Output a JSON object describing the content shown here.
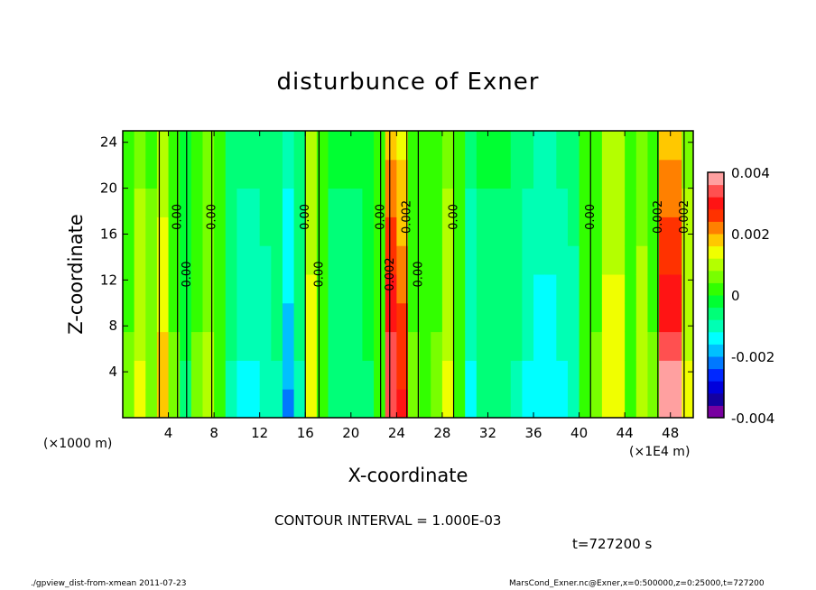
{
  "title": "disturbunce of Exner",
  "ylabel": "Z-coordinate",
  "xlabel": "X-coordinate",
  "x_unit_left": "(×1000 m)",
  "x_unit_right": "(×1E4 m)",
  "contour_interval": "CONTOUR INTERVAL = 1.000E-03",
  "time": "t=727200 s",
  "footer_left": "./gpview_dist-from-xmean   2011-07-23",
  "footer_right": "MarsCond_Exner.nc@Exner,x=0:500000,z=0:25000,t=727200",
  "chart_data": {
    "type": "heatmap",
    "title": "disturbunce of Exner",
    "xlabel": "X-coordinate",
    "ylabel": "Z-coordinate",
    "xlim": [
      0,
      50
    ],
    "ylim": [
      0,
      25
    ],
    "xticks": [
      4,
      8,
      12,
      16,
      20,
      24,
      28,
      32,
      36,
      40,
      44,
      48
    ],
    "yticks": [
      4,
      8,
      12,
      16,
      20,
      24
    ],
    "x_profile_x": [
      0.5,
      1.5,
      2.5,
      3.5,
      4.5,
      5.5,
      6.5,
      7.5,
      8.5,
      9.5,
      10.5,
      11.5,
      12.5,
      13.5,
      14.5,
      15.5,
      16.5,
      17.5,
      18.5,
      19.5,
      20.5,
      21.5,
      22.5,
      23.5,
      24.5,
      25.5,
      26.5,
      27.5,
      28.5,
      29.5,
      30.5,
      31.5,
      32.5,
      33.5,
      34.5,
      35.5,
      36.5,
      37.5,
      38.5,
      39.5,
      40.5,
      41.5,
      42.5,
      43.5,
      44.5,
      45.5,
      46.5,
      47.5,
      48.5,
      49.5
    ],
    "x_profile_value": [
      0.0004,
      0.0012,
      0.0006,
      0.0016,
      0.0004,
      -0.0004,
      0.0004,
      0.0008,
      0,
      -0.0008,
      -0.0012,
      -0.0012,
      -0.001,
      -0.0008,
      -0.0018,
      -0.0008,
      0.0014,
      0.0002,
      -0.0006,
      -0.0006,
      -0.0006,
      -0.0004,
      0.0002,
      0.0032,
      0.0026,
      0.0004,
      0.0002,
      0.0004,
      0.0012,
      0,
      -0.0012,
      -0.0006,
      -0.0006,
      -0.0006,
      -0.0008,
      -0.0012,
      -0.0014,
      -0.0014,
      -0.0012,
      -0.001,
      0,
      0.0004,
      0.0014,
      0.0014,
      0.0002,
      0.001,
      0.0004,
      0.0034,
      0.0034,
      0.0012
    ],
    "colorbar": {
      "levels": [
        -0.004,
        0.004
      ],
      "step": 0.0004,
      "tick_labels": [
        "0.004",
        "0.002",
        "0",
        "-0.002",
        "-0.004"
      ],
      "colors": [
        "#7800a0",
        "#1400a0",
        "#0000dc",
        "#0028ff",
        "#0078ff",
        "#00c0ff",
        "#00ffff",
        "#00ffb4",
        "#00ff78",
        "#00ff32",
        "#32ff00",
        "#78ff00",
        "#b4ff00",
        "#f0ff00",
        "#ffc800",
        "#ff8000",
        "#ff3200",
        "#ff1414",
        "#ff5050",
        "#ffa0a0"
      ]
    },
    "contours": [
      {
        "x": 3.2,
        "label": ""
      },
      {
        "x": 4.8,
        "label": "0.00"
      },
      {
        "x": 5.6,
        "label": "0.00"
      },
      {
        "x": 7.8,
        "label": "0.00"
      },
      {
        "x": 16.0,
        "label": "0.00"
      },
      {
        "x": 17.2,
        "label": "0.00"
      },
      {
        "x": 22.6,
        "label": "0.00"
      },
      {
        "x": 23.4,
        "label": "0.002"
      },
      {
        "x": 24.9,
        "label": "0.002"
      },
      {
        "x": 25.9,
        "label": "0.00"
      },
      {
        "x": 29.0,
        "label": "0.00"
      },
      {
        "x": 41.0,
        "label": "0.00"
      },
      {
        "x": 46.9,
        "label": "0.002"
      },
      {
        "x": 49.2,
        "label": "0.002"
      }
    ]
  }
}
